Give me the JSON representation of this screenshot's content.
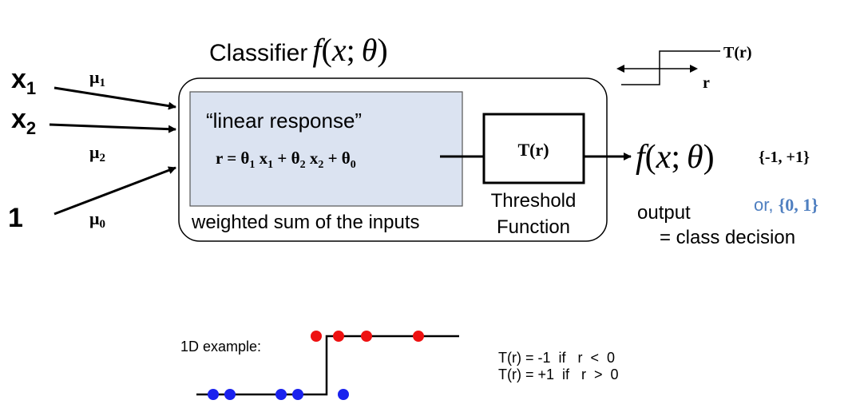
{
  "title": {
    "prefix": "Classifier",
    "func": "f",
    "open": "(",
    "x": "x",
    "semi": ";",
    "theta": "θ",
    "close": ")"
  },
  "inputs": {
    "x1": {
      "base": "x",
      "sub": "1"
    },
    "x2": {
      "base": "x",
      "sub": "2"
    },
    "bias": "1"
  },
  "weights": {
    "mu1": {
      "base": "μ",
      "sub": "1"
    },
    "mu2": {
      "base": "μ",
      "sub": "2"
    },
    "mu0": {
      "base": "μ",
      "sub": "0"
    }
  },
  "linear_box": {
    "quote": "“linear response”",
    "eq": {
      "r_eq": "r = θ",
      "s1": "1",
      "x1": " x",
      "x1s": "1",
      "plus1": " + θ",
      "s2": "2",
      "x2": " x",
      "x2s": "2",
      "plus2": " + θ",
      "s0": "0"
    },
    "caption": "weighted sum of the inputs"
  },
  "threshold": {
    "box_label": "T(r)",
    "caption_line1": "Threshold",
    "caption_line2": "Function"
  },
  "output": {
    "f": "f",
    "open": "(",
    "x": "x",
    "semi": ";",
    "theta": "θ",
    "close": ")",
    "set1": "{-1, +1}",
    "or_label": "or, ",
    "set2": "{0, 1}",
    "output_word": "output",
    "class_decision": "= class decision"
  },
  "step_icon": {
    "label": "T(r)",
    "axis": "r"
  },
  "example": {
    "label": "1D example:",
    "rule1": "T(r) = -1  if   r  <  0",
    "rule2": "T(r) = +1  if   r  >  0"
  },
  "colors": {
    "linear_fill": "#dbe3f1",
    "red_point": "#ee1111",
    "blue_point": "#1a22ee",
    "or_color": "#4f7fc0"
  }
}
